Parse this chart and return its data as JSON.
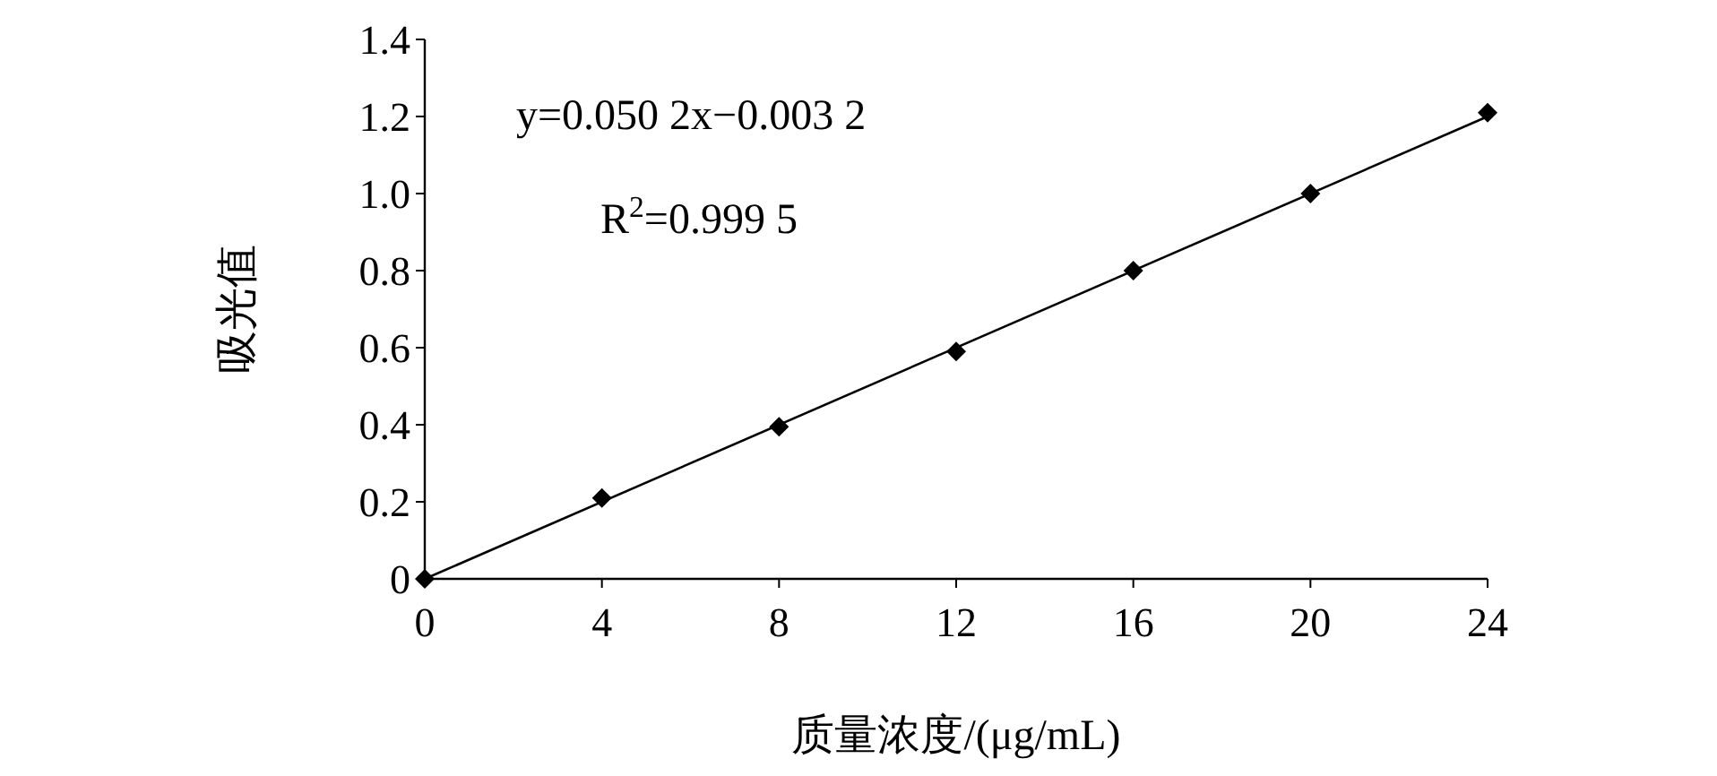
{
  "chart_data": {
    "type": "scatter",
    "xlabel": "质量浓度/(μg/mL)",
    "ylabel": "吸光值",
    "annotations": [
      "y=0.050 2x−0.003 2",
      "R$^{2}$=0.999 5"
    ],
    "x": [
      0,
      4,
      8,
      12,
      16,
      20,
      24
    ],
    "series": [
      {
        "type": "scatter",
        "color": "#000000",
        "marker": "diamond",
        "values": [
          0,
          0.21,
          0.395,
          0.59,
          0.8,
          1.0,
          1.21
        ]
      },
      {
        "type": "line",
        "color": "#000000",
        "marker": "none",
        "line_style": "solid",
        "x": [
          0,
          24
        ],
        "values": [
          0,
          1.2
        ]
      }
    ],
    "xlim": [
      0,
      24
    ],
    "xticks": [
      0,
      4,
      8,
      12,
      16,
      20,
      24
    ],
    "ylim": [
      0,
      1.4
    ],
    "yticks": [
      0,
      0.2,
      0.4,
      0.6,
      0.8,
      {
        "value": 1,
        "label": "1.0"
      },
      1.2,
      1.4
    ],
    "grid": false
  }
}
